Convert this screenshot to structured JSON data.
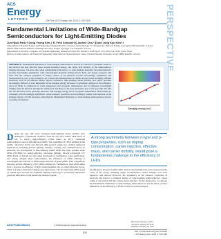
{
  "header": {
    "logo_top": "ACS",
    "logo_main": "Energy",
    "logo_bottom": "LETTERS",
    "cite": "Cite This: ACS Energy Lett. 2018, 3, 520−525",
    "section": "PERSPECTIVE"
  },
  "title": "Fundamental Limitations of Wide-Bandgap Semiconductors for Light-Emitting Diodes",
  "authors": "Jun Hyuk Park,† Dong Yeong Kim,‡ E. Fred Schubert,§ Jaehee Cho,*,∥ and Jong Kyu Kim*,†",
  "affiliations": [
    "†Department of Materials Science and Engineering, Pohang University of Science and Technology, 77 Cheongam-Ro, Nam-Gu, Pohang, Gyeongbuk 37673, Republic of Korea",
    "‡Future Semiconductor Business, Samsung Electronics, Yongin, Gyeonggi 17113, Republic of Korea",
    "§Department of Electrical, Computer, and Systems Engineering, Rensselaer Polytechnic Institute, 110 8th Street, Troy, New York 12180, United States",
    "∥School of Semiconductor and Chemical Engineering, Semiconductor Physics Research Center, Chonbuk National University, Jeonju 54896, Republic of Korea"
  ],
  "abstract": {
    "label": "ABSTRACT:",
    "text": "Fundamental limitations of wide-bandgap semiconductor devices are caused by systematic trends of the electron and hole effective mass, dopant ionization energy, and carrier drift mobility as the semiconductor bandgap increases. We show that, when transitioning from narrow- to wide-bandgap materials, the semiconductors become increasingly asymmetric, with wide-bandgap materials having heavier holes and deeper acceptors. We show that the transport properties of charge carriers in pn junctions become increasingly asymmetric and characterized by poor p-type transport. As a result, the demonstration of visible devices based on highly efficient structures, such as pn junction diodes, bipolar transistors, light-emitting diodes (LEDs), and lasers, becomes increasingly difficult or even impossible in the bandgap energy increases. A systematic analysis of the efficiency droop in LEDs is conducted for room temperature and cryogenic temperatures and for emission wavelengths ranging from the infrared, through the visible (red and blue), to the deep ultraviolet part of the spectrum. We find that the efficiency droop generally increases with bandgap energy and at cryogenic temperatures. Both trends are consistent with increasingly asymmetric carrier-transport properties and increasingly weaker hole injection as the bandgap energy of LEDs increases, indicating the fundamental limitations of wide-bandgap semiconductor devices are being encountered.",
    "graphic_axis": "Bandgap energy (eV)"
  },
  "body": {
    "dropcap": "D",
    "col1": "uring the past 100 years, inorganic light-emitting diodes (LEDs) have undergone a significant evolution, from the very first visible LED based on SiC to today's high-efficiency LEDs based on III−V compound semiconductors such as AlGaInP and GaInN. The availability of LEDs emitting in the visible, ultraviolet (UV), and infrared (IR) spectral ranges has enabled numerous applications, including general lighting, displays, sensing, and communications. In particular, the development of blue-emitting GaInN LEDs has made possible white LEDs (WLEDs) for energy-efficient solid-state lighting. Shorter-wavelength UV LEDs based on AlGaN are also being developed for sterilization, water purification, and curing. Despite these achievements, the efficiency of LEDs emitting at wavelengths much shorter or much longer than that of green suffers from a significant decrease, and the efficiency of UV LEDs remains low. Furthermore, most LEDs suffer from a decrease in efficiency at high current densities, the so-called efficiency droop, which is a major obstacle for high-power applications. The fact that white LEDs based on GaInN have become the dominant lighting technology is particularly impressive given the difficulties of the underlying material system.",
    "quote": "A strong asymmetry between n-type and p-type properties, such as doping concentration, carrier injection, effective mass, and carrier mobility, would pose a fundamental challenge to the efficiency of LEDs.",
    "col2": "the efficiency droop in GaInN LEDs. Various mechanisms have been proposed as the cause of the droop, including Auger recombination, carrier leakage, poor hole injection, and defects. However, the asymmetry in the transport properties of electrons and holes is a common feature of wide-bandgap semiconductors, whose origin is associated with the valence band structure. In this Perspective, we discuss the fundamental limitations of wide-bandgap semiconductors and the effect of these limitations on the efficiency of LEDs in view of carrier transport."
  },
  "footer": {
    "publisher": "ACS Publications",
    "copyright": "© 2018 American Chemical Society",
    "dates": [
      "Received: January 1, 2018",
      "Accepted: January 29, 2018",
      "Published: January 29, 2018"
    ],
    "page": "520",
    "doi": "DOI: 10.1021/acsenergylett.7b01243",
    "journal": "ACS Energy Lett. 2018, 3, 520−525"
  }
}
